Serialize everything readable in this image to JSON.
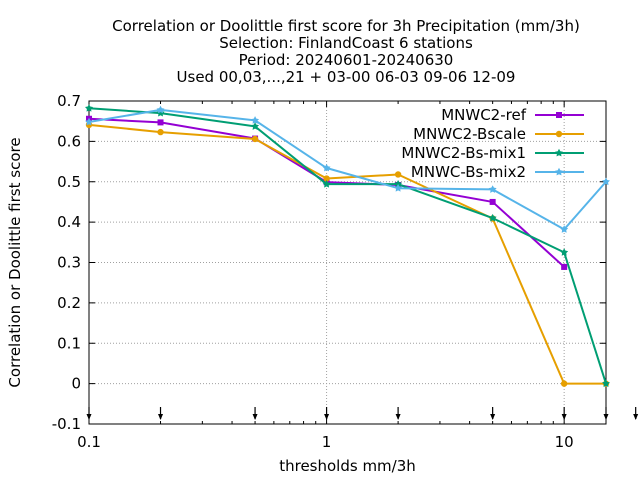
{
  "chart_data": {
    "type": "line",
    "title_lines": [
      "Correlation or Doolittle first score  for 3h Precipitation (mm/3h)",
      "Selection: FinlandCoast      6 stations",
      "Period: 20240601-20240630",
      "Used 00,03,...,21 + 03-00 06-03 09-06 12-09"
    ],
    "xlabel": "thresholds mm/3h",
    "ylabel": "Correlation or Doolittle first score",
    "x_scale": "log",
    "xlim": [
      0.1,
      15
    ],
    "ylim": [
      -0.1,
      0.7
    ],
    "x_ticks": [
      0.1,
      1,
      10
    ],
    "x_tick_labels": [
      "0.1",
      "1",
      "10"
    ],
    "y_ticks": [
      -0.1,
      0,
      0.1,
      0.2,
      0.3,
      0.4,
      0.5,
      0.6,
      0.7
    ],
    "y_tick_labels": [
      "-0.1",
      "0",
      "0.1",
      "0.2",
      "0.3",
      "0.4",
      "0.5",
      "0.6",
      "0.7"
    ],
    "grid": true,
    "legend_position": "top-right",
    "threshold_markers": [
      0.1,
      0.2,
      0.5,
      1,
      2,
      5,
      10,
      15,
      20
    ],
    "series": [
      {
        "name": "MNWC2-ref",
        "color": "#9400d3",
        "marker": "square",
        "x": [
          0.1,
          0.2,
          0.5,
          1,
          2,
          5,
          10
        ],
        "values": [
          0.656,
          0.647,
          0.607,
          0.499,
          0.492,
          0.45,
          0.289
        ]
      },
      {
        "name": "MNWC2-Bscale",
        "color": "#e69f00",
        "marker": "circle",
        "x": [
          0.1,
          0.2,
          0.5,
          1,
          2,
          5,
          10,
          15
        ],
        "values": [
          0.641,
          0.623,
          0.606,
          0.508,
          0.518,
          0.409,
          0.0,
          0.0
        ]
      },
      {
        "name": "MNWC2-Bs-mix1",
        "color": "#009e73",
        "marker": "star",
        "x": [
          0.1,
          0.2,
          0.5,
          1,
          2,
          5,
          10,
          15
        ],
        "values": [
          0.682,
          0.67,
          0.637,
          0.494,
          0.494,
          0.41,
          0.325,
          0.0
        ]
      },
      {
        "name": "MNWC-Bs-mix2",
        "color": "#56b4e9",
        "marker": "star",
        "x": [
          0.1,
          0.2,
          0.5,
          1,
          2,
          5,
          10,
          15
        ],
        "values": [
          0.648,
          0.678,
          0.652,
          0.534,
          0.484,
          0.481,
          0.382,
          0.5
        ]
      }
    ]
  }
}
